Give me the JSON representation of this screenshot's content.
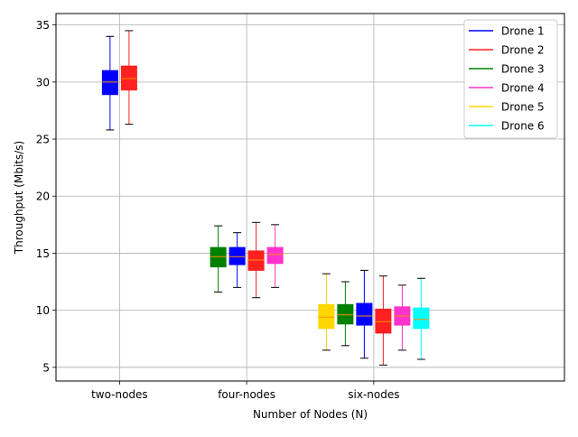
{
  "chart_data": {
    "type": "box",
    "title": "",
    "xlabel": "Number of Nodes (N)",
    "ylabel": "Throughput (Mbits/s)",
    "ylim": [
      3.8,
      36.0
    ],
    "yticks": [
      5,
      10,
      15,
      20,
      25,
      30,
      35
    ],
    "grid": true,
    "legend_position": "top-right",
    "categories": [
      "two-nodes",
      "four-nodes",
      "six-nodes"
    ],
    "series": [
      {
        "name": "Drone 1",
        "color": "#0000ff"
      },
      {
        "name": "Drone 2",
        "color": "#ff2020"
      },
      {
        "name": "Drone 3",
        "color": "#008000"
      },
      {
        "name": "Drone 4",
        "color": "#ff33cc"
      },
      {
        "name": "Drone 5",
        "color": "#ffd700"
      },
      {
        "name": "Drone 6",
        "color": "#00ffff"
      }
    ],
    "groups": [
      {
        "category": "two-nodes",
        "boxes": [
          {
            "series": "Drone 1",
            "min": 25.8,
            "q1": 28.9,
            "median": 30.0,
            "q3": 31.0,
            "max": 34.0
          },
          {
            "series": "Drone 2",
            "min": 26.3,
            "q1": 29.3,
            "median": 30.3,
            "q3": 31.4,
            "max": 34.5
          }
        ]
      },
      {
        "category": "four-nodes",
        "boxes": [
          {
            "series": "Drone 3",
            "min": 11.6,
            "q1": 13.8,
            "median": 14.7,
            "q3": 15.5,
            "max": 17.4
          },
          {
            "series": "Drone 1",
            "min": 12.0,
            "q1": 14.0,
            "median": 14.7,
            "q3": 15.5,
            "max": 16.8
          },
          {
            "series": "Drone 2",
            "min": 11.1,
            "q1": 13.5,
            "median": 14.4,
            "q3": 15.2,
            "max": 17.7
          },
          {
            "series": "Drone 4",
            "min": 12.0,
            "q1": 14.1,
            "median": 14.9,
            "q3": 15.5,
            "max": 17.5
          }
        ]
      },
      {
        "category": "six-nodes",
        "boxes": [
          {
            "series": "Drone 5",
            "min": 6.5,
            "q1": 8.4,
            "median": 9.4,
            "q3": 10.5,
            "max": 13.2
          },
          {
            "series": "Drone 3",
            "min": 6.9,
            "q1": 8.8,
            "median": 9.6,
            "q3": 10.5,
            "max": 12.5
          },
          {
            "series": "Drone 1",
            "min": 5.8,
            "q1": 8.7,
            "median": 9.5,
            "q3": 10.6,
            "max": 13.5
          },
          {
            "series": "Drone 2",
            "min": 5.2,
            "q1": 8.0,
            "median": 9.0,
            "q3": 10.1,
            "max": 13.0
          },
          {
            "series": "Drone 4",
            "min": 6.5,
            "q1": 8.7,
            "median": 9.5,
            "q3": 10.3,
            "max": 12.2
          },
          {
            "series": "Drone 6",
            "min": 5.7,
            "q1": 8.4,
            "median": 9.2,
            "q3": 10.2,
            "max": 12.8
          }
        ]
      }
    ],
    "median_color": "#ff8c00"
  }
}
